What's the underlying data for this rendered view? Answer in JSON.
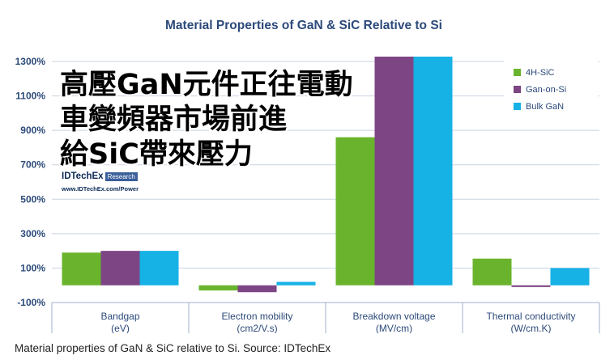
{
  "chart_data": {
    "type": "bar",
    "title": "Material Properties of GaN & SiC Relative to Si",
    "categories": [
      {
        "name": "Bandgap",
        "unit": "(eV)"
      },
      {
        "name": "Electron mobility",
        "unit": "(cm2/V.s)"
      },
      {
        "name": "Breakdown voltage",
        "unit": "(MV/cm)"
      },
      {
        "name": "Thermal conductivity",
        "unit": "(W/cm.K)"
      }
    ],
    "series": [
      {
        "name": "4H-SiC",
        "color": "#6ab42d",
        "values": [
          190,
          -30,
          860,
          155
        ]
      },
      {
        "name": "Gan-on-Si",
        "color": "#7e4585",
        "values": [
          200,
          -40,
          1340,
          -10
        ]
      },
      {
        "name": "Bulk GaN",
        "color": "#16b1e5",
        "values": [
          200,
          20,
          1330,
          100
        ]
      }
    ],
    "yticks": [
      "1300%",
      "1100%",
      "900%",
      "700%",
      "500%",
      "300%",
      "100%",
      "-100%"
    ],
    "ylim": [
      -100,
      1350
    ],
    "legend_position": "top-right",
    "grid": true
  },
  "overlay": {
    "lines": [
      "高壓GaN元件正往電動",
      "車變頻器市場前進",
      "給SiC帶來壓力"
    ]
  },
  "brand": {
    "name": "IDTechEx",
    "tag": "Research",
    "url": "www.IDTechEx.com/Power"
  },
  "caption": "Material properties of GaN & SiC relative to Si. Source: IDTechEx"
}
